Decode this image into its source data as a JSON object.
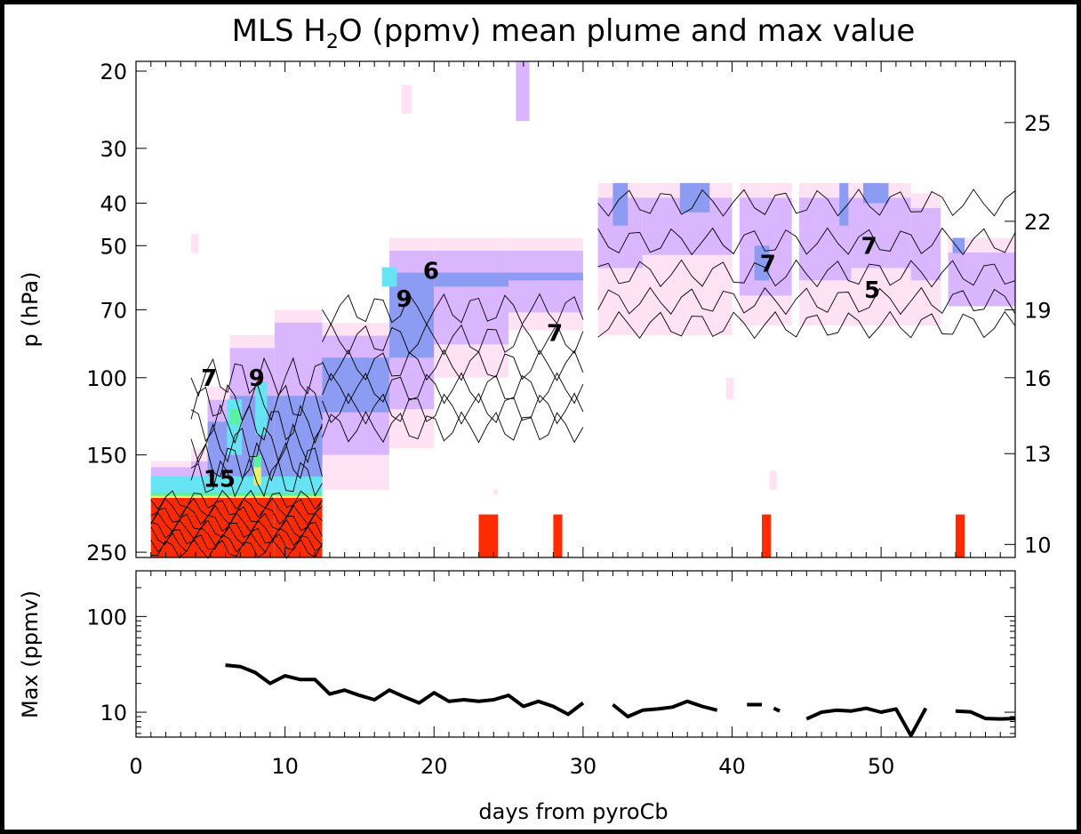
{
  "chart_data": [
    {
      "type": "heatmap",
      "title_main": "MLS H",
      "title_sub": "2",
      "title_rest": "O (ppmv) mean plume and max value",
      "xlabel": "days from pyroCb",
      "ylabel": "p (hPa)",
      "xlim": [
        0,
        59
      ],
      "ylim_hpa": [
        257,
        19
      ],
      "y_scale": "log",
      "yticks_left": [
        "20",
        "30",
        "40",
        "50",
        "70",
        "100",
        "150",
        "250"
      ],
      "yticks_left_values": [
        20,
        30,
        40,
        50,
        70,
        100,
        150,
        250
      ],
      "yticks_right": [
        "25",
        "22",
        "19",
        "16",
        "13",
        "10"
      ],
      "yticks_right_pressure": [
        26.2,
        44,
        70,
        100,
        149,
        240
      ],
      "contour_labels": [
        {
          "text": "7",
          "day": 4.9,
          "p": 100
        },
        {
          "text": "9",
          "day": 8.1,
          "p": 100
        },
        {
          "text": "15",
          "day": 5.6,
          "p": 170
        },
        {
          "text": "9",
          "day": 18.0,
          "p": 66
        },
        {
          "text": "6",
          "day": 19.8,
          "p": 57
        },
        {
          "text": "7",
          "day": 28.1,
          "p": 79
        },
        {
          "text": "7",
          "day": 42.4,
          "p": 55
        },
        {
          "text": "7",
          "day": 49.2,
          "p": 50
        },
        {
          "text": "5",
          "day": 49.4,
          "p": 63
        }
      ],
      "colors": {
        "lt5": "#ffe2f4",
        "5to6": "#d9b6ff",
        "6to8": "#8c9cf2",
        "8to10": "#66e4f4",
        "10to12": "#5af1a0",
        "12to14": "#e8f36a",
        "ge14": "#ff2a00"
      }
    },
    {
      "type": "line",
      "ylabel": "Max (ppmv)",
      "y_scale": "log",
      "ylim": [
        5.5,
        300
      ],
      "yticks": [
        "100",
        "10"
      ],
      "yticks_values": [
        100,
        10
      ],
      "xticks": [
        "0",
        "10",
        "20",
        "30",
        "40",
        "50"
      ],
      "xticks_values": [
        0,
        10,
        20,
        30,
        40,
        50
      ],
      "segments": [
        {
          "x": [
            6,
            7,
            8,
            9,
            10,
            11,
            12,
            13,
            14,
            15,
            16,
            17,
            18,
            19,
            20,
            21,
            22,
            23,
            24,
            25,
            26,
            27,
            28,
            29,
            30
          ],
          "y": [
            31,
            30,
            26,
            20,
            24,
            22,
            22,
            15.5,
            17,
            15,
            13.5,
            17,
            14.5,
            12.5,
            16,
            13,
            13.5,
            13,
            13.5,
            15,
            11.5,
            13,
            11.5,
            9.5,
            12.5
          ]
        },
        {
          "x": [
            32,
            33,
            34,
            35,
            36,
            37,
            38,
            39
          ],
          "y": [
            12,
            9,
            10.5,
            10.8,
            11.3,
            13,
            11.5,
            10.5
          ]
        },
        {
          "x": [
            41,
            42
          ],
          "y": [
            12,
            12
          ]
        },
        {
          "x": [
            42.8,
            43.2
          ],
          "y": [
            11,
            10.3
          ]
        },
        {
          "x": [
            45,
            46,
            47,
            48,
            49,
            50,
            51,
            52,
            53
          ],
          "y": [
            8.5,
            10,
            10.5,
            10.3,
            11,
            10,
            10.8,
            5.7,
            11
          ]
        },
        {
          "x": [
            55,
            56,
            57,
            58,
            59
          ],
          "y": [
            10.3,
            10.1,
            8.6,
            8.5,
            8.6
          ]
        }
      ]
    }
  ]
}
